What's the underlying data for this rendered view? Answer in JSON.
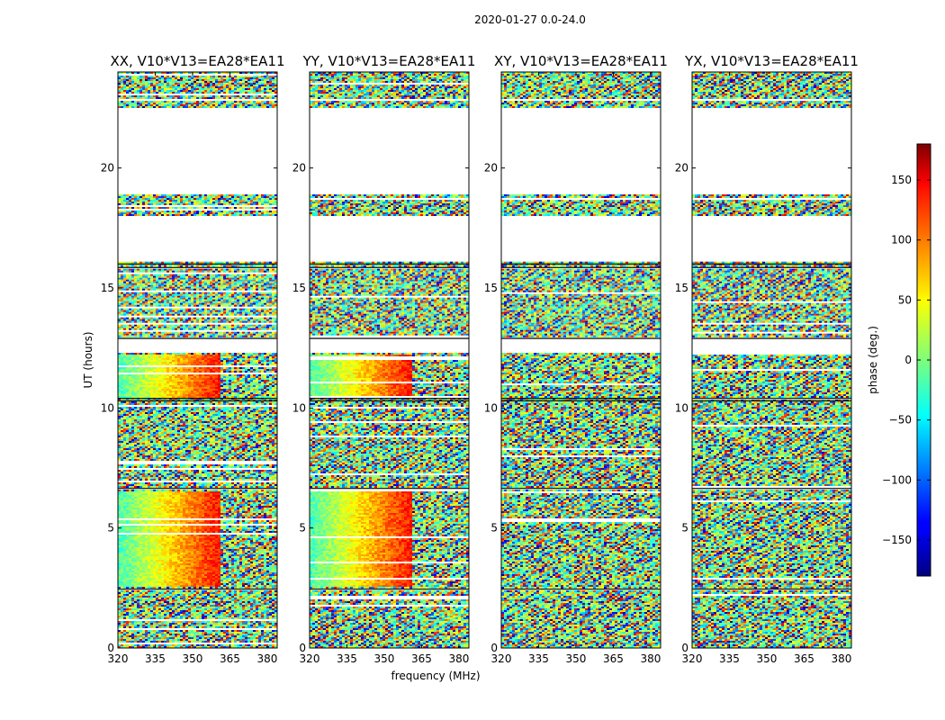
{
  "figure": {
    "title": "2020-01-27 0.0-24.0"
  },
  "chart_data": [
    {
      "type": "heatmap",
      "title": "XX, V10*V13=EA28*EA11",
      "xlabel": "frequency (MHz)",
      "ylabel": "UT (hours)",
      "xlim": [
        320,
        384
      ],
      "ylim": [
        0,
        24
      ],
      "xticks": [
        "320",
        "335",
        "350",
        "365",
        "380"
      ],
      "yticks": [
        "0",
        "5",
        "10",
        "15",
        "20"
      ]
    },
    {
      "type": "heatmap",
      "title": "YY, V10*V13=EA28*EA11",
      "xlabel": "frequency (MHz)",
      "ylabel": "UT (hours)",
      "xlim": [
        320,
        384
      ],
      "ylim": [
        0,
        24
      ],
      "xticks": [
        "320",
        "335",
        "350",
        "365",
        "380"
      ],
      "yticks": [
        "0",
        "5",
        "10",
        "15",
        "20"
      ]
    },
    {
      "type": "heatmap",
      "title": "XY, V10*V13=EA28*EA11",
      "xlabel": "frequency (MHz)",
      "ylabel": "UT (hours)",
      "xlim": [
        320,
        384
      ],
      "ylim": [
        0,
        24
      ],
      "xticks": [
        "320",
        "335",
        "350",
        "365",
        "380"
      ],
      "yticks": [
        "0",
        "5",
        "10",
        "15",
        "20"
      ]
    },
    {
      "type": "heatmap",
      "title": "YX, V10*V13=EA28*EA11",
      "xlabel": "frequency (MHz)",
      "ylabel": "UT (hours)",
      "xlim": [
        320,
        384
      ],
      "ylim": [
        0,
        24
      ],
      "xticks": [
        "320",
        "335",
        "350",
        "365",
        "380"
      ],
      "yticks": [
        "0",
        "5",
        "10",
        "15",
        "20"
      ]
    }
  ],
  "axes": {
    "xlabel": "frequency (MHz)",
    "ylabel": "UT (hours)"
  },
  "colorbar": {
    "label": "phase (deg.)",
    "range": [
      -180,
      180
    ],
    "ticks": [
      "150",
      "100",
      "50",
      "0",
      "−50",
      "−100",
      "−150"
    ],
    "tick_values": [
      150,
      100,
      50,
      0,
      -50,
      -100,
      -150
    ],
    "colormap": "jet"
  }
}
